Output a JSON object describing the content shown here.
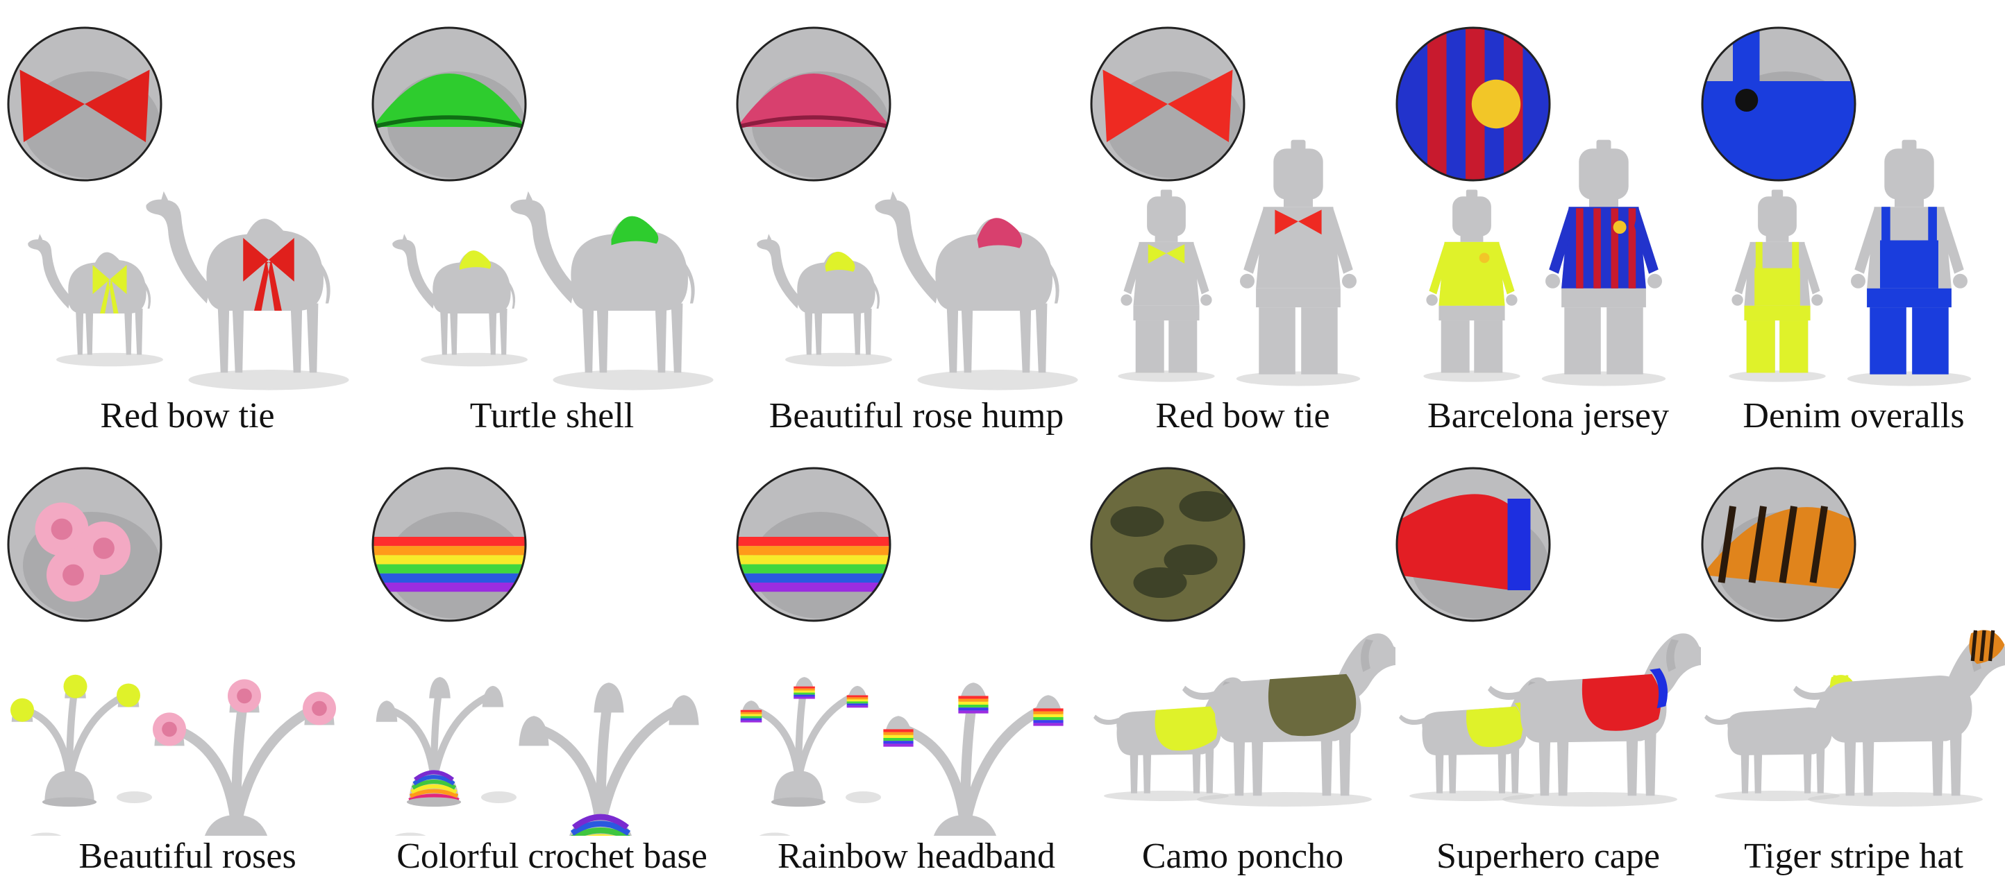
{
  "colors": {
    "highlight": "#dff22a",
    "mesh": "#c4c4c6",
    "shadow": "#cfcfcf"
  },
  "rows": [
    {
      "name": "row-1",
      "panels": [
        {
          "caption": "Red bow tie",
          "subject": "camel",
          "accessory": "bow",
          "color": "#e0201c",
          "color2": "#b81512"
        },
        {
          "caption": "Turtle shell",
          "subject": "camel",
          "accessory": "shell",
          "color": "#2ecc2e",
          "color2": "#0f6e14"
        },
        {
          "caption": "Beautiful rose hump",
          "subject": "camel",
          "accessory": "rose",
          "color": "#d8406e",
          "color2": "#8e1d40"
        },
        {
          "caption": "Red bow tie",
          "subject": "figure",
          "accessory": "bowtie",
          "color": "#ee2a22",
          "color2": "#c01812"
        },
        {
          "caption": "Barcelona jersey",
          "subject": "figure",
          "accessory": "jersey",
          "color": "#2233cc",
          "color2": "#c81a2e"
        },
        {
          "caption": "Denim overalls",
          "subject": "figure",
          "accessory": "overalls",
          "color": "#1a3ddd",
          "color2": "#0d2599"
        }
      ]
    },
    {
      "name": "row-2",
      "panels": [
        {
          "caption": "Beautiful roses",
          "subject": "plant",
          "accessory": "roses",
          "color": "#f3a9c3",
          "color2": "#e07a9d"
        },
        {
          "caption": "Colorful crochet base",
          "subject": "plant",
          "accessory": "base",
          "color": "#e3267a",
          "color2": "#2a59e0"
        },
        {
          "caption": "Rainbow headband",
          "subject": "plant",
          "accessory": "headband",
          "color": "#ff2d2d",
          "color2": "#3d3df0"
        },
        {
          "caption": "Camo poncho",
          "subject": "dog",
          "accessory": "poncho",
          "color": "#6b6a3e",
          "color2": "#3e4228"
        },
        {
          "caption": "Superhero cape",
          "subject": "dog",
          "accessory": "cape",
          "color": "#e31e24",
          "color2": "#1d2fe0"
        },
        {
          "caption": "Tiger stripe hat",
          "subject": "dog",
          "accessory": "hat",
          "color": "#e0841c",
          "color2": "#2a1a0c"
        }
      ]
    }
  ]
}
